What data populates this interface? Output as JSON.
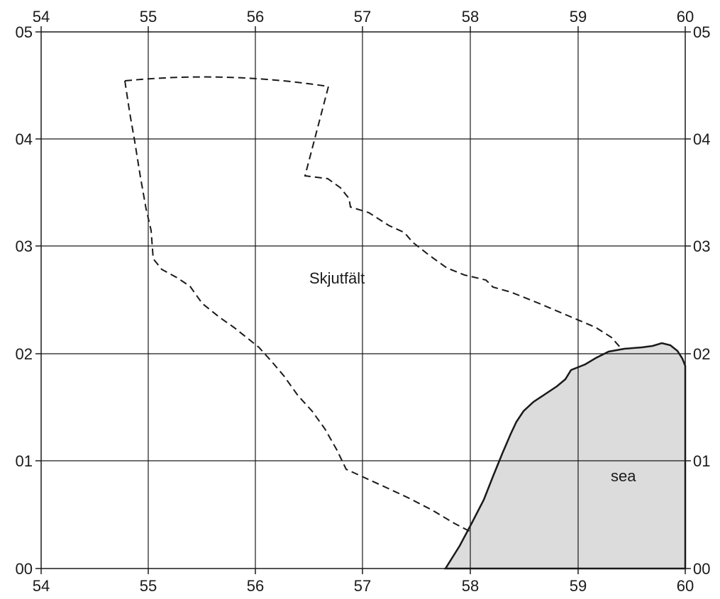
{
  "map": {
    "x_ticks": [
      "54",
      "55",
      "56",
      "57",
      "58",
      "59",
      "60"
    ],
    "y_ticks": [
      "00",
      "01",
      "02",
      "03",
      "04",
      "05"
    ],
    "labels": {
      "firing_range": "Skjutfält",
      "sea": "sea"
    },
    "colors": {
      "sea_fill": "#dcdcdc",
      "lines": "#1a1a1a"
    }
  }
}
